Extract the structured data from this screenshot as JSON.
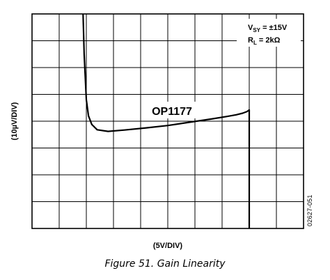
{
  "chart_data": {
    "type": "line",
    "title": "",
    "xlabel": "(5V/DIV)",
    "ylabel": "(10µV/DIV)",
    "grid": true,
    "divisions": {
      "x": 10,
      "y": 8
    },
    "xlim": [
      -25,
      25
    ],
    "ylim": [
      -40,
      40
    ],
    "series": [
      {
        "name": "OP1177",
        "x": [
          -15.6,
          -15.4,
          -15.0,
          -14.6,
          -14.0,
          -13.0,
          -11.0,
          -8.0,
          -4.0,
          0.0,
          4.0,
          8.0,
          11.0,
          12.6,
          13.8,
          14.6,
          15.0,
          15.0,
          15.0,
          15.0
        ],
        "y": [
          40.0,
          25.0,
          8.0,
          2.0,
          -1.2,
          -3.2,
          -3.8,
          -3.3,
          -2.5,
          -1.6,
          -0.4,
          0.8,
          1.8,
          2.4,
          3.0,
          3.6,
          4.2,
          0.0,
          -20.0,
          -40.0
        ]
      }
    ],
    "annotations": {
      "supply_label": "V",
      "supply_sub": "SY",
      "supply_value": " = ±15V",
      "load_label": "R",
      "load_sub": "L",
      "load_value": " = 2kΩ",
      "curve_label": "OP1177"
    }
  },
  "caption": "Figure 51. Gain Linearity",
  "figure_id": "02627-051"
}
